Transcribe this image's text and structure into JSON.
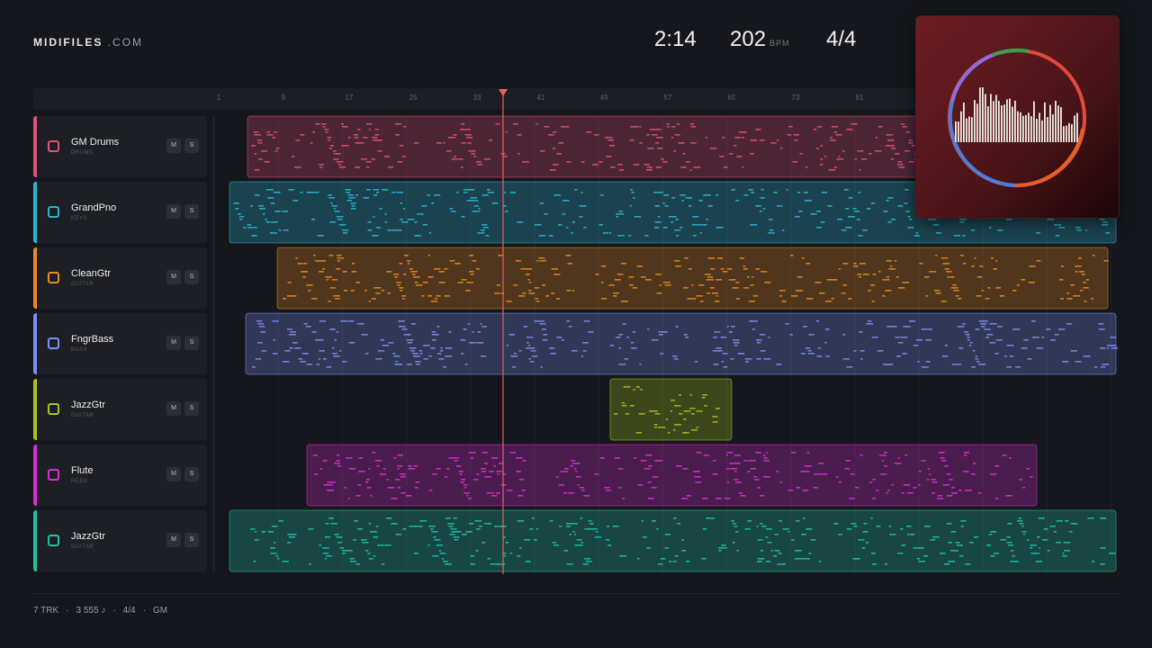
{
  "header": {
    "brand": "MIDIFILES",
    "domain": ".COM",
    "time": "2:14",
    "tempo": "202",
    "tempo_unit": "BPM",
    "meter": "4/4"
  },
  "ruler": [
    "1",
    "9",
    "17",
    "25",
    "33",
    "41",
    "49",
    "57",
    "65",
    "73",
    "81"
  ],
  "tracks": [
    {
      "name": "GM Drums",
      "kind": "DRUMS",
      "mute": "M",
      "solo": "S",
      "color": "#e0507a"
    },
    {
      "name": "GrandPno",
      "kind": "KEYS",
      "mute": "M",
      "solo": "S",
      "color": "#2bb6d4"
    },
    {
      "name": "CleanGtr",
      "kind": "GUITAR",
      "mute": "M",
      "solo": "S",
      "color": "#e88a1e"
    },
    {
      "name": "FngrBass",
      "kind": "BASS",
      "mute": "M",
      "solo": "S",
      "color": "#7b8ff0"
    },
    {
      "name": "JazzGtr",
      "kind": "GUITAR",
      "mute": "M",
      "solo": "S",
      "color": "#a8c41e"
    },
    {
      "name": "Flute",
      "kind": "REED",
      "mute": "M",
      "solo": "S",
      "color": "#d62fd0"
    },
    {
      "name": "JazzGtr",
      "kind": "GUITAR",
      "mute": "M",
      "solo": "S",
      "color": "#1fc2a6"
    }
  ],
  "footer": [
    "7 TRK",
    "3 555 ♪",
    "4/4",
    "GM"
  ]
}
